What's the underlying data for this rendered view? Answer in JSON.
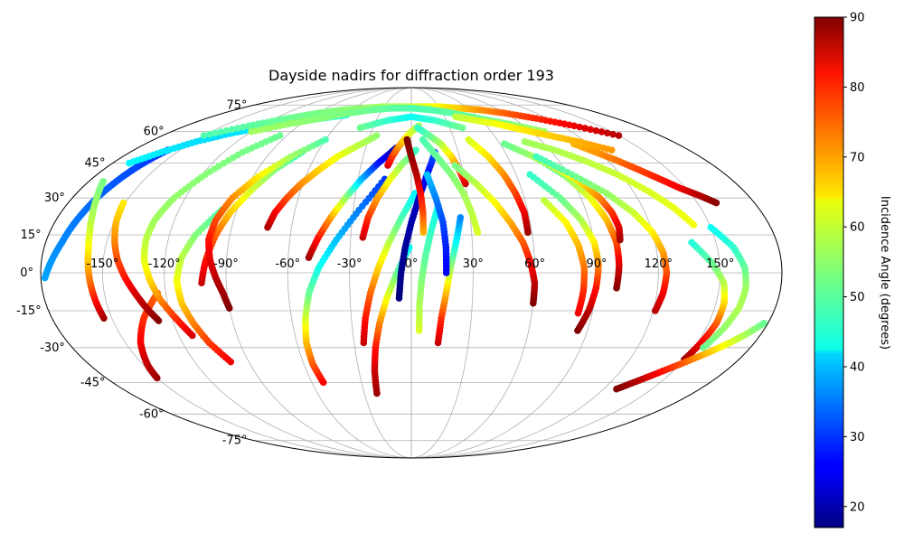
{
  "chart_data": {
    "type": "scatter",
    "projection": "mollweide",
    "title": "Dayside nadirs for diffraction order 193",
    "xlabel": "",
    "ylabel": "",
    "xlim": [
      -180,
      180
    ],
    "ylim": [
      -90,
      90
    ],
    "grid": true,
    "longitude_ticks": [
      -150,
      -120,
      -90,
      -60,
      -30,
      0,
      30,
      60,
      90,
      120,
      150
    ],
    "longitude_tick_labels": [
      "-150°",
      "-120°",
      "-90°",
      "-60°",
      "-30°",
      "0°",
      "30°",
      "60°",
      "90°",
      "120°",
      "150°"
    ],
    "latitude_ticks": [
      -75,
      -60,
      -45,
      -30,
      -15,
      0,
      15,
      30,
      45,
      60,
      75
    ],
    "latitude_tick_labels": [
      "-75°",
      "-60°",
      "-45°",
      "-30°",
      "-15°",
      "0°",
      "15°",
      "30°",
      "45°",
      "60°",
      "75°"
    ],
    "colorbar": {
      "label": "Incidence Angle (degrees)",
      "min": 17,
      "max": 90,
      "colormap": "jet",
      "ticks": [
        20,
        30,
        40,
        50,
        60,
        70,
        80,
        90
      ],
      "tick_labels": [
        "20",
        "30",
        "40",
        "50",
        "60",
        "70",
        "80",
        "90"
      ]
    },
    "series": [
      {
        "lon": [
          -178,
          -175,
          -172,
          -170,
          -168,
          -166,
          -164,
          -162,
          -160,
          -158
        ],
        "lat": [
          -2,
          5,
          12,
          19,
          26,
          33,
          39,
          44,
          48,
          51
        ],
        "incidence": [
          38,
          37,
          36,
          35,
          34,
          33,
          32,
          31,
          30,
          29
        ]
      },
      {
        "lon": [
          -154,
          -155,
          -156,
          -157,
          -158,
          -160,
          -163,
          -167,
          -172
        ],
        "lat": [
          -18,
          -12,
          -5,
          2,
          9,
          16,
          23,
          30,
          37
        ],
        "incidence": [
          88,
          82,
          75,
          69,
          64,
          60,
          57,
          55,
          53
        ]
      },
      {
        "lon": [
          -150,
          -148,
          -145,
          -142,
          -138,
          -134,
          -129,
          -124
        ],
        "lat": [
          -43,
          -38,
          -33,
          -28,
          -23,
          -18,
          -13,
          -8
        ],
        "incidence": [
          88,
          86,
          84,
          82,
          80,
          78,
          76,
          74
        ]
      },
      {
        "lon": [
          -127,
          -131,
          -135,
          -139,
          -143,
          -146,
          -149,
          -151
        ],
        "lat": [
          -19,
          -14,
          -8,
          -2,
          5,
          12,
          20,
          28
        ],
        "incidence": [
          90,
          87,
          84,
          80,
          76,
          72,
          68,
          64
        ]
      },
      {
        "lon": [
          -113,
          -118,
          -123,
          -127,
          -130,
          -131,
          -130,
          -126,
          -118,
          -108,
          -95
        ],
        "lat": [
          -25,
          -18,
          -11,
          -3,
          5,
          13,
          21,
          30,
          40,
          50,
          58
        ],
        "incidence": [
          84,
          78,
          72,
          66,
          61,
          58,
          56,
          55,
          54,
          53,
          52
        ]
      },
      {
        "lon": [
          -100,
          -106,
          -110,
          -113,
          -114,
          -112,
          -107,
          -98
        ],
        "lat": [
          -36,
          -28,
          -20,
          -12,
          -3,
          6,
          15,
          25
        ],
        "incidence": [
          82,
          77,
          72,
          67,
          62,
          58,
          54,
          50
        ]
      },
      {
        "lon": [
          -102,
          -100,
          -97,
          -93,
          -87,
          -80,
          -70
        ],
        "lat": [
          -4,
          5,
          15,
          24,
          33,
          42,
          50
        ],
        "incidence": [
          85,
          80,
          74,
          67,
          60,
          54,
          48
        ]
      },
      {
        "lon": [
          -90,
          -92,
          -95,
          -98,
          -100,
          -99,
          -95,
          -87,
          -75,
          -60
        ],
        "lat": [
          -14,
          -8,
          -2,
          5,
          13,
          21,
          30,
          39,
          48,
          56
        ],
        "incidence": [
          90,
          88,
          86,
          83,
          80,
          76,
          71,
          64,
          56,
          50
        ]
      },
      {
        "lon": [
          -72,
          -70,
          -66,
          -61,
          -54,
          -46,
          -36,
          -25
        ],
        "lat": [
          18,
          24,
          30,
          36,
          42,
          48,
          53,
          58
        ],
        "incidence": [
          87,
          82,
          76,
          71,
          66,
          62,
          58,
          55
        ]
      },
      {
        "lon": [
          -53,
          -55,
          -55,
          -53,
          -50,
          -45,
          -37,
          -27,
          -15
        ],
        "lat": [
          -45,
          -37,
          -28,
          -18,
          -8,
          2,
          13,
          25,
          38
        ],
        "incidence": [
          82,
          75,
          68,
          60,
          52,
          46,
          40,
          35,
          30
        ]
      },
      {
        "lon": [
          -50,
          -46,
          -41,
          -35,
          -28,
          -20,
          -10
        ],
        "lat": [
          6,
          14,
          22,
          30,
          38,
          45,
          52
        ],
        "incidence": [
          88,
          80,
          70,
          56,
          40,
          28,
          20
        ]
      },
      {
        "lon": [
          -22,
          -21,
          -19,
          -16,
          -12,
          -7,
          -1
        ],
        "lat": [
          -50,
          -40,
          -30,
          -20,
          -10,
          0,
          10
        ],
        "incidence": [
          88,
          85,
          80,
          72,
          62,
          52,
          44
        ]
      },
      {
        "lon": [
          -25,
          -23,
          -20,
          -16,
          -11,
          -5,
          2
        ],
        "lat": [
          -28,
          -18,
          -8,
          2,
          12,
          22,
          32
        ],
        "incidence": [
          85,
          80,
          74,
          66,
          58,
          50,
          44
        ]
      },
      {
        "lon": [
          -24,
          -22,
          -18,
          -12,
          -5,
          3
        ],
        "lat": [
          14,
          22,
          30,
          38,
          45,
          51
        ],
        "incidence": [
          85,
          78,
          70,
          62,
          55,
          49
        ]
      },
      {
        "lon": [
          -14,
          -12,
          -9,
          -5,
          0,
          6
        ],
        "lat": [
          44,
          48,
          52,
          56,
          60,
          63
        ],
        "incidence": [
          84,
          78,
          72,
          66,
          60,
          56
        ]
      },
      {
        "lon": [
          -6,
          -5,
          -3,
          0,
          4,
          9,
          15
        ],
        "lat": [
          -10,
          0,
          10,
          20,
          30,
          40,
          50
        ],
        "incidence": [
          17,
          18,
          19,
          20,
          22,
          26,
          32
        ]
      },
      {
        "lon": [
          4,
          4,
          5,
          7,
          10,
          14
        ],
        "lat": [
          -23,
          -13,
          -3,
          7,
          17,
          27
        ],
        "incidence": [
          60,
          57,
          54,
          51,
          48,
          45
        ]
      },
      {
        "lon": [
          6,
          6,
          5,
          3,
          0,
          -3
        ],
        "lat": [
          16,
          24,
          32,
          40,
          48,
          56
        ],
        "incidence": [
          68,
          75,
          80,
          86,
          88,
          90
        ]
      },
      {
        "lon": [
          14,
          15,
          17,
          19,
          22,
          25
        ],
        "lat": [
          -28,
          -18,
          -8,
          2,
          12,
          22
        ],
        "incidence": [
          85,
          78,
          68,
          56,
          45,
          36
        ]
      },
      {
        "lon": [
          17,
          17,
          16,
          13,
          9
        ],
        "lat": [
          0,
          10,
          20,
          30,
          40
        ],
        "incidence": [
          25,
          28,
          31,
          35,
          40
        ]
      },
      {
        "lon": [
          30,
          28,
          25,
          20,
          13,
          5
        ],
        "lat": [
          36,
          42,
          48,
          54,
          58,
          62
        ],
        "incidence": [
          85,
          76,
          66,
          58,
          52,
          48
        ]
      },
      {
        "lon": [
          33,
          31,
          28,
          23,
          16,
          8
        ],
        "lat": [
          16,
          24,
          32,
          40,
          48,
          56
        ],
        "incidence": [
          60,
          58,
          56,
          54,
          52,
          50
        ]
      },
      {
        "lon": [
          60,
          60,
          58,
          55,
          50,
          44,
          36,
          26
        ],
        "lat": [
          -12,
          -4,
          4,
          12,
          20,
          28,
          36,
          44
        ],
        "incidence": [
          90,
          86,
          81,
          75,
          69,
          63,
          58,
          53
        ]
      },
      {
        "lon": [
          58,
          58,
          56,
          53,
          48,
          40
        ],
        "lat": [
          16,
          24,
          32,
          40,
          48,
          56
        ],
        "incidence": [
          88,
          83,
          77,
          71,
          65,
          60
        ]
      },
      {
        "lon": [
          85,
          88,
          90,
          91,
          90,
          86,
          79,
          68
        ],
        "lat": [
          -23,
          -15,
          -6,
          3,
          12,
          21,
          30,
          40
        ],
        "incidence": [
          90,
          86,
          80,
          72,
          64,
          57,
          52,
          48
        ]
      },
      {
        "lon": [
          83,
          84,
          84,
          82,
          78,
          70
        ],
        "lat": [
          -16,
          -7,
          2,
          11,
          20,
          29
        ],
        "incidence": [
          82,
          78,
          73,
          68,
          63,
          58
        ]
      },
      {
        "lon": [
          100,
          101,
          101,
          99,
          95,
          88,
          78
        ],
        "lat": [
          -6,
          3,
          12,
          21,
          30,
          39,
          47
        ],
        "incidence": [
          90,
          84,
          76,
          68,
          61,
          55,
          50
        ]
      },
      {
        "lon": [
          103,
          104,
          103,
          100,
          95,
          87,
          76,
          63
        ],
        "lat": [
          13,
          18,
          24,
          30,
          36,
          42,
          48,
          54
        ],
        "incidence": [
          88,
          84,
          78,
          72,
          66,
          61,
          56,
          52
        ]
      },
      {
        "lon": [
          121,
          123,
          124,
          123,
          120,
          114,
          105,
          92,
          78
        ],
        "lat": [
          -15,
          -8,
          0,
          8,
          16,
          24,
          32,
          40,
          48
        ],
        "incidence": [
          86,
          82,
          76,
          70,
          64,
          59,
          55,
          52,
          49
        ]
      },
      {
        "lon": [
          142,
          136,
          128,
          118,
          106,
          93,
          78
        ],
        "lat": [
          19,
          26,
          33,
          40,
          46,
          51,
          55
        ],
        "incidence": [
          62,
          61,
          60,
          59,
          58,
          57,
          56
        ]
      },
      {
        "lon": [
          110,
          118,
          126,
          133,
          140,
          147,
          154,
          160
        ],
        "lat": [
          54,
          50,
          46,
          42,
          38,
          34,
          31,
          28
        ],
        "incidence": [
          68,
          70,
          73,
          76,
          79,
          82,
          86,
          89
        ]
      },
      {
        "lon": [
          150,
          152,
          154,
          154,
          152,
          146,
          138
        ],
        "lat": [
          -35,
          -28,
          -20,
          -12,
          -4,
          4,
          12
        ],
        "incidence": [
          88,
          82,
          75,
          66,
          58,
          52,
          47
        ]
      },
      {
        "lon": [
          155,
          159,
          162,
          163,
          162,
          158,
          150
        ],
        "lat": [
          -30,
          -22,
          -14,
          -6,
          2,
          10,
          18
        ],
        "incidence": [
          52,
          55,
          57,
          56,
          52,
          48,
          45
        ]
      },
      {
        "lon": [
          128,
          136,
          144,
          152,
          160,
          167,
          173,
          178
        ],
        "lat": [
          -48,
          -44,
          -40,
          -36,
          -32,
          -28,
          -24,
          -20
        ],
        "incidence": [
          90,
          86,
          80,
          74,
          67,
          61,
          56,
          52
        ]
      },
      {
        "lon": [
          -170,
          -160,
          -148,
          -134,
          -118,
          -100,
          -80,
          -60
        ],
        "lat": [
          45,
          50,
          55,
          59,
          62,
          65,
          67,
          69
        ],
        "incidence": [
          44,
          43,
          42,
          42,
          43,
          44,
          45,
          46
        ]
      },
      {
        "lon": [
          -150,
          -130,
          -110,
          -90,
          -70,
          -50,
          -30,
          -10,
          10,
          30,
          50,
          70,
          90,
          110,
          130,
          150
        ],
        "lat": [
          58,
          63,
          67,
          70,
          72,
          73,
          74,
          74,
          74,
          74,
          73,
          72,
          70,
          67,
          63,
          58
        ],
        "incidence": [
          50,
          51,
          52,
          53,
          54,
          55,
          56,
          57,
          60,
          63,
          66,
          70,
          74,
          78,
          82,
          86
        ]
      },
      {
        "lon": [
          -120,
          -100,
          -80,
          -60,
          -40,
          -20,
          0,
          20,
          40,
          60,
          80,
          100
        ],
        "lat": [
          60,
          64,
          67,
          70,
          72,
          73,
          73,
          72,
          70,
          67,
          64,
          60
        ],
        "incidence": [
          56,
          55,
          54,
          53,
          52,
          51,
          50,
          50,
          51,
          52,
          54,
          56
        ]
      },
      {
        "lon": [
          40,
          55,
          70,
          85,
          100,
          115,
          130
        ],
        "lat": [
          68,
          66,
          64,
          61,
          58,
          55,
          51
        ],
        "incidence": [
          58,
          60,
          62,
          64,
          66,
          68,
          70
        ]
      },
      {
        "lon": [
          -40,
          -20,
          0,
          20,
          40
        ],
        "lat": [
          62,
          66,
          68,
          66,
          62
        ],
        "incidence": [
          52,
          48,
          45,
          48,
          52
        ]
      }
    ]
  }
}
